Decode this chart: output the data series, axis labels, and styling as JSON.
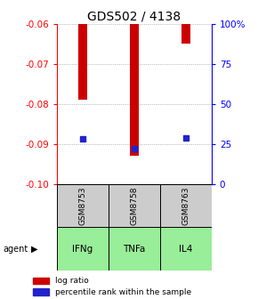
{
  "title": "GDS502 / 4138",
  "samples": [
    "GSM8753",
    "GSM8758",
    "GSM8763"
  ],
  "agents": [
    "IFNg",
    "TNFa",
    "IL4"
  ],
  "log_ratios": [
    -0.079,
    -0.093,
    -0.065
  ],
  "percentile_ranks": [
    0.28,
    0.22,
    0.29
  ],
  "ylim": [
    -0.1,
    -0.06
  ],
  "yticks": [
    -0.1,
    -0.09,
    -0.08,
    -0.07,
    -0.06
  ],
  "y2lim": [
    0,
    100
  ],
  "y2ticks": [
    0,
    25,
    50,
    75,
    100
  ],
  "bar_color": "#cc0000",
  "marker_color": "#2222cc",
  "sample_bg": "#cccccc",
  "agent_bg": "#99ee99",
  "grid_color": "#888888",
  "title_fontsize": 10,
  "tick_fontsize": 7.5,
  "label_fontsize": 7
}
